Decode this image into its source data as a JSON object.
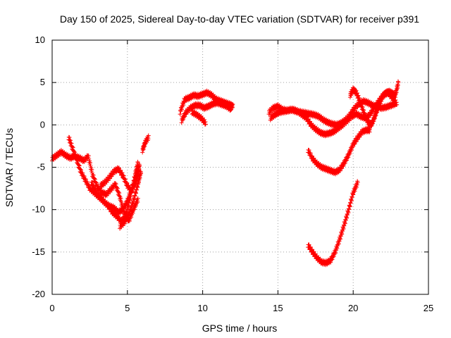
{
  "chart_data": {
    "type": "scatter",
    "title": "Day 150 of 2025, Sidereal Day-to-day VTEC variation (SDTVAR) for receiver p391",
    "xlabel": "GPS time / hours",
    "ylabel": "SDTVAR / TECUs",
    "xlim": [
      0,
      25
    ],
    "ylim": [
      -20,
      10
    ],
    "xticks": [
      "0",
      "5",
      "10",
      "15",
      "20",
      "25"
    ],
    "yticks": [
      "10",
      "5",
      "0",
      "-5",
      "-10",
      "-15",
      "-20"
    ],
    "grid": true,
    "marker": "+",
    "color": "#ff0000",
    "series": [
      {
        "x": [
          0.0,
          0.3,
          0.6,
          0.9,
          1.2,
          1.5,
          1.8,
          2.1,
          2.4,
          2.7,
          3.0,
          3.3,
          3.6,
          3.9,
          4.2,
          4.5,
          4.8,
          5.1,
          5.4,
          5.7
        ],
        "y": [
          -4.0,
          -3.6,
          -3.2,
          -3.6,
          -3.9,
          -3.7,
          -3.9,
          -4.2,
          -3.7,
          -6.0,
          -7.3,
          -8.0,
          -8.2,
          -7.6,
          -7.0,
          -8.5,
          -10.5,
          -11.3,
          -10.0,
          -8.8
        ]
      },
      {
        "x": [
          1.1,
          1.3,
          1.6,
          1.9,
          2.2,
          2.5,
          2.8,
          3.1,
          3.4,
          3.7,
          4.0,
          4.3,
          4.6,
          4.9,
          5.2,
          5.5,
          5.7
        ],
        "y": [
          -1.5,
          -2.5,
          -4.0,
          -5.5,
          -6.5,
          -7.5,
          -8.0,
          -8.5,
          -9.0,
          -9.5,
          -10.3,
          -10.8,
          -11.4,
          -10.6,
          -8.5,
          -6.0,
          -4.5
        ]
      },
      {
        "x": [
          2.6,
          2.9,
          3.2,
          3.5,
          3.8,
          4.1,
          4.4,
          4.7,
          5.0,
          5.3,
          5.6,
          5.8
        ],
        "y": [
          -6.8,
          -7.8,
          -8.5,
          -9.2,
          -9.6,
          -9.8,
          -10.3,
          -10.0,
          -9.0,
          -7.5,
          -6.0,
          -4.8
        ]
      },
      {
        "x": [
          3.2,
          3.5,
          3.8,
          4.1,
          4.4,
          4.7,
          5.0,
          5.3,
          5.6,
          5.8
        ],
        "y": [
          -7.2,
          -6.8,
          -6.2,
          -5.5,
          -5.2,
          -6.0,
          -7.2,
          -7.8,
          -6.5,
          -5.0
        ]
      },
      {
        "x": [
          4.5,
          4.8,
          5.1,
          5.4,
          5.7,
          5.9
        ],
        "y": [
          -12.0,
          -11.5,
          -10.5,
          -9.0,
          -7.0,
          -5.5
        ]
      },
      {
        "x": [
          6.0,
          6.2,
          6.4
        ],
        "y": [
          -3.0,
          -2.0,
          -1.5
        ]
      },
      {
        "x": [
          8.5,
          8.8,
          9.1,
          9.4,
          9.7,
          10.0,
          10.3,
          10.6,
          10.9,
          11.2,
          11.5,
          11.8,
          12.0
        ],
        "y": [
          1.5,
          3.0,
          3.2,
          3.5,
          3.4,
          3.6,
          3.8,
          3.5,
          3.0,
          2.8,
          2.6,
          2.4,
          2.2
        ]
      },
      {
        "x": [
          8.6,
          8.9,
          9.2,
          9.5,
          9.8,
          10.1,
          10.4,
          10.7,
          11.0,
          11.3,
          11.6,
          11.9
        ],
        "y": [
          0.5,
          1.5,
          2.0,
          2.3,
          2.3,
          2.0,
          2.2,
          2.5,
          2.6,
          2.4,
          2.2,
          1.8
        ]
      },
      {
        "x": [
          9.3,
          9.6,
          9.9,
          10.2
        ],
        "y": [
          1.5,
          1.2,
          0.8,
          0.2
        ]
      },
      {
        "x": [
          14.4,
          14.7,
          15.0,
          15.3,
          15.6,
          15.9,
          16.2,
          16.5,
          16.8,
          17.1,
          17.4,
          17.7,
          18.0,
          18.3,
          18.6,
          18.9,
          19.2,
          19.5,
          19.8,
          20.1,
          20.4,
          20.7,
          21.0,
          21.3,
          21.6,
          21.9,
          22.2,
          22.5,
          22.8
        ],
        "y": [
          1.5,
          2.0,
          2.2,
          1.8,
          1.7,
          1.8,
          1.6,
          1.5,
          1.4,
          1.3,
          1.2,
          1.0,
          0.6,
          0.3,
          0.1,
          0.0,
          0.2,
          0.6,
          1.2,
          2.0,
          2.5,
          2.8,
          2.6,
          2.3,
          2.1,
          2.0,
          2.1,
          2.3,
          2.5
        ]
      },
      {
        "x": [
          14.5,
          14.8,
          15.1,
          15.4,
          15.7,
          16.0,
          16.3,
          16.6,
          16.9,
          17.2,
          17.5,
          17.8,
          18.1,
          18.4,
          18.7,
          19.0,
          19.3,
          19.6,
          19.9,
          20.2,
          20.5,
          20.8,
          21.1,
          21.4,
          21.7,
          22.0,
          22.3,
          22.6,
          22.9
        ],
        "y": [
          0.8,
          1.2,
          1.5,
          1.6,
          1.7,
          1.8,
          1.6,
          1.2,
          0.8,
          0.0,
          -0.5,
          -0.9,
          -1.1,
          -1.0,
          -0.8,
          -0.4,
          0.0,
          0.5,
          1.0,
          1.3,
          1.0,
          0.8,
          1.2,
          2.0,
          2.8,
          3.5,
          3.8,
          3.2,
          2.5
        ]
      },
      {
        "x": [
          19.8,
          20.0,
          20.2,
          20.4,
          20.6,
          20.8,
          21.0,
          21.2,
          21.4,
          21.6,
          21.8,
          22.0,
          22.2,
          22.4,
          22.6,
          22.8,
          23.0
        ],
        "y": [
          3.5,
          4.2,
          3.8,
          3.0,
          2.0,
          1.0,
          0.3,
          0.0,
          0.8,
          1.8,
          2.8,
          3.5,
          3.8,
          3.9,
          3.7,
          3.5,
          5.0
        ]
      },
      {
        "x": [
          17.0,
          17.3,
          17.6,
          17.9,
          18.2,
          18.5,
          18.8,
          19.1,
          19.4,
          19.7,
          20.0,
          20.3,
          20.6,
          20.9,
          21.1
        ],
        "y": [
          -3.0,
          -4.0,
          -4.6,
          -5.0,
          -5.2,
          -5.4,
          -5.6,
          -5.3,
          -4.5,
          -3.5,
          -2.3,
          -1.5,
          -0.8,
          -0.6,
          -0.6
        ]
      },
      {
        "x": [
          17.0,
          17.3,
          17.6,
          17.9,
          18.2,
          18.5,
          18.8,
          19.1,
          19.4,
          19.7,
          20.0,
          20.3
        ],
        "y": [
          -14.2,
          -15.0,
          -15.7,
          -16.2,
          -16.3,
          -16.0,
          -15.0,
          -13.5,
          -11.8,
          -10.0,
          -8.0,
          -6.8
        ]
      }
    ]
  }
}
